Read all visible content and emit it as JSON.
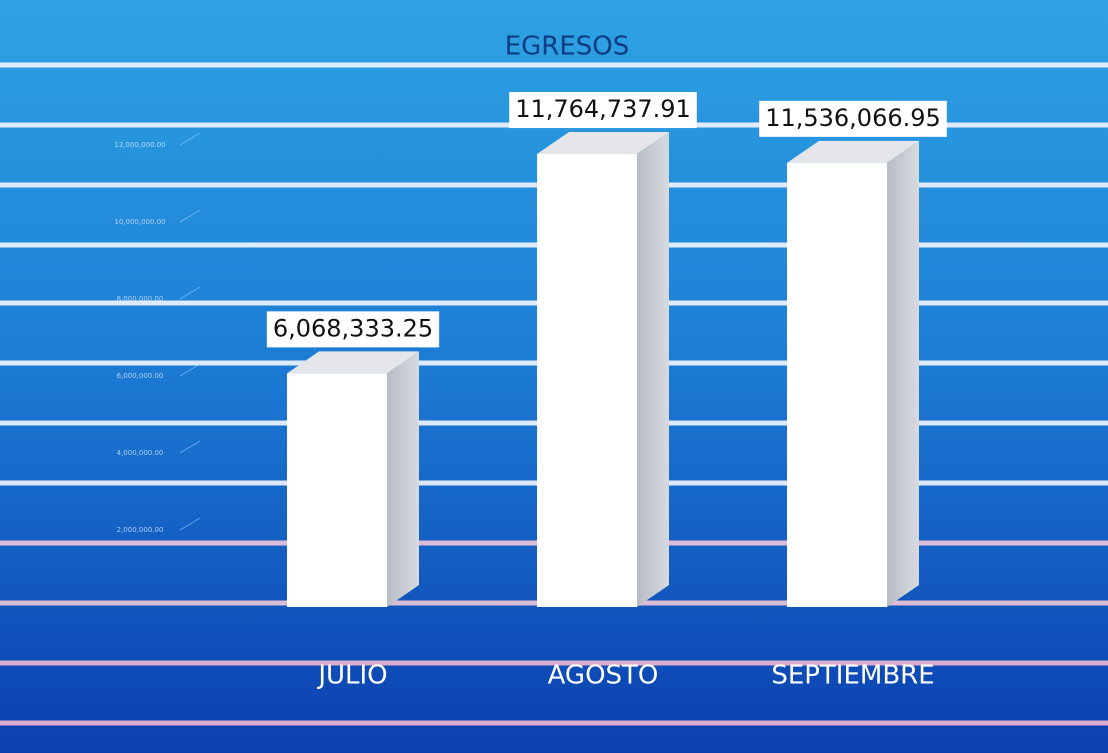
{
  "chart_data": {
    "type": "bar3d",
    "title": "EGRESOS",
    "categories": [
      "JULIO",
      "AGOSTO",
      "SEPTIEMBRE"
    ],
    "values": [
      6068333.25,
      11764737.91,
      11536066.95
    ],
    "value_labels": [
      "6,068,333.25",
      "11,764,737.91",
      "11,536,066.95"
    ],
    "color": "#ffffff",
    "ylim": [
      0,
      13000000
    ],
    "yticks": [
      {
        "value": 2000000,
        "label": "2,000,000.00"
      },
      {
        "value": 4000000,
        "label": "4,000,000.00"
      },
      {
        "value": 6000000,
        "label": "6,000,000.00"
      },
      {
        "value": 8000000,
        "label": "8,000,000.00"
      },
      {
        "value": 10000000,
        "label": "10,000,000.00"
      },
      {
        "value": 12000000,
        "label": "12,000,000.00"
      }
    ]
  }
}
